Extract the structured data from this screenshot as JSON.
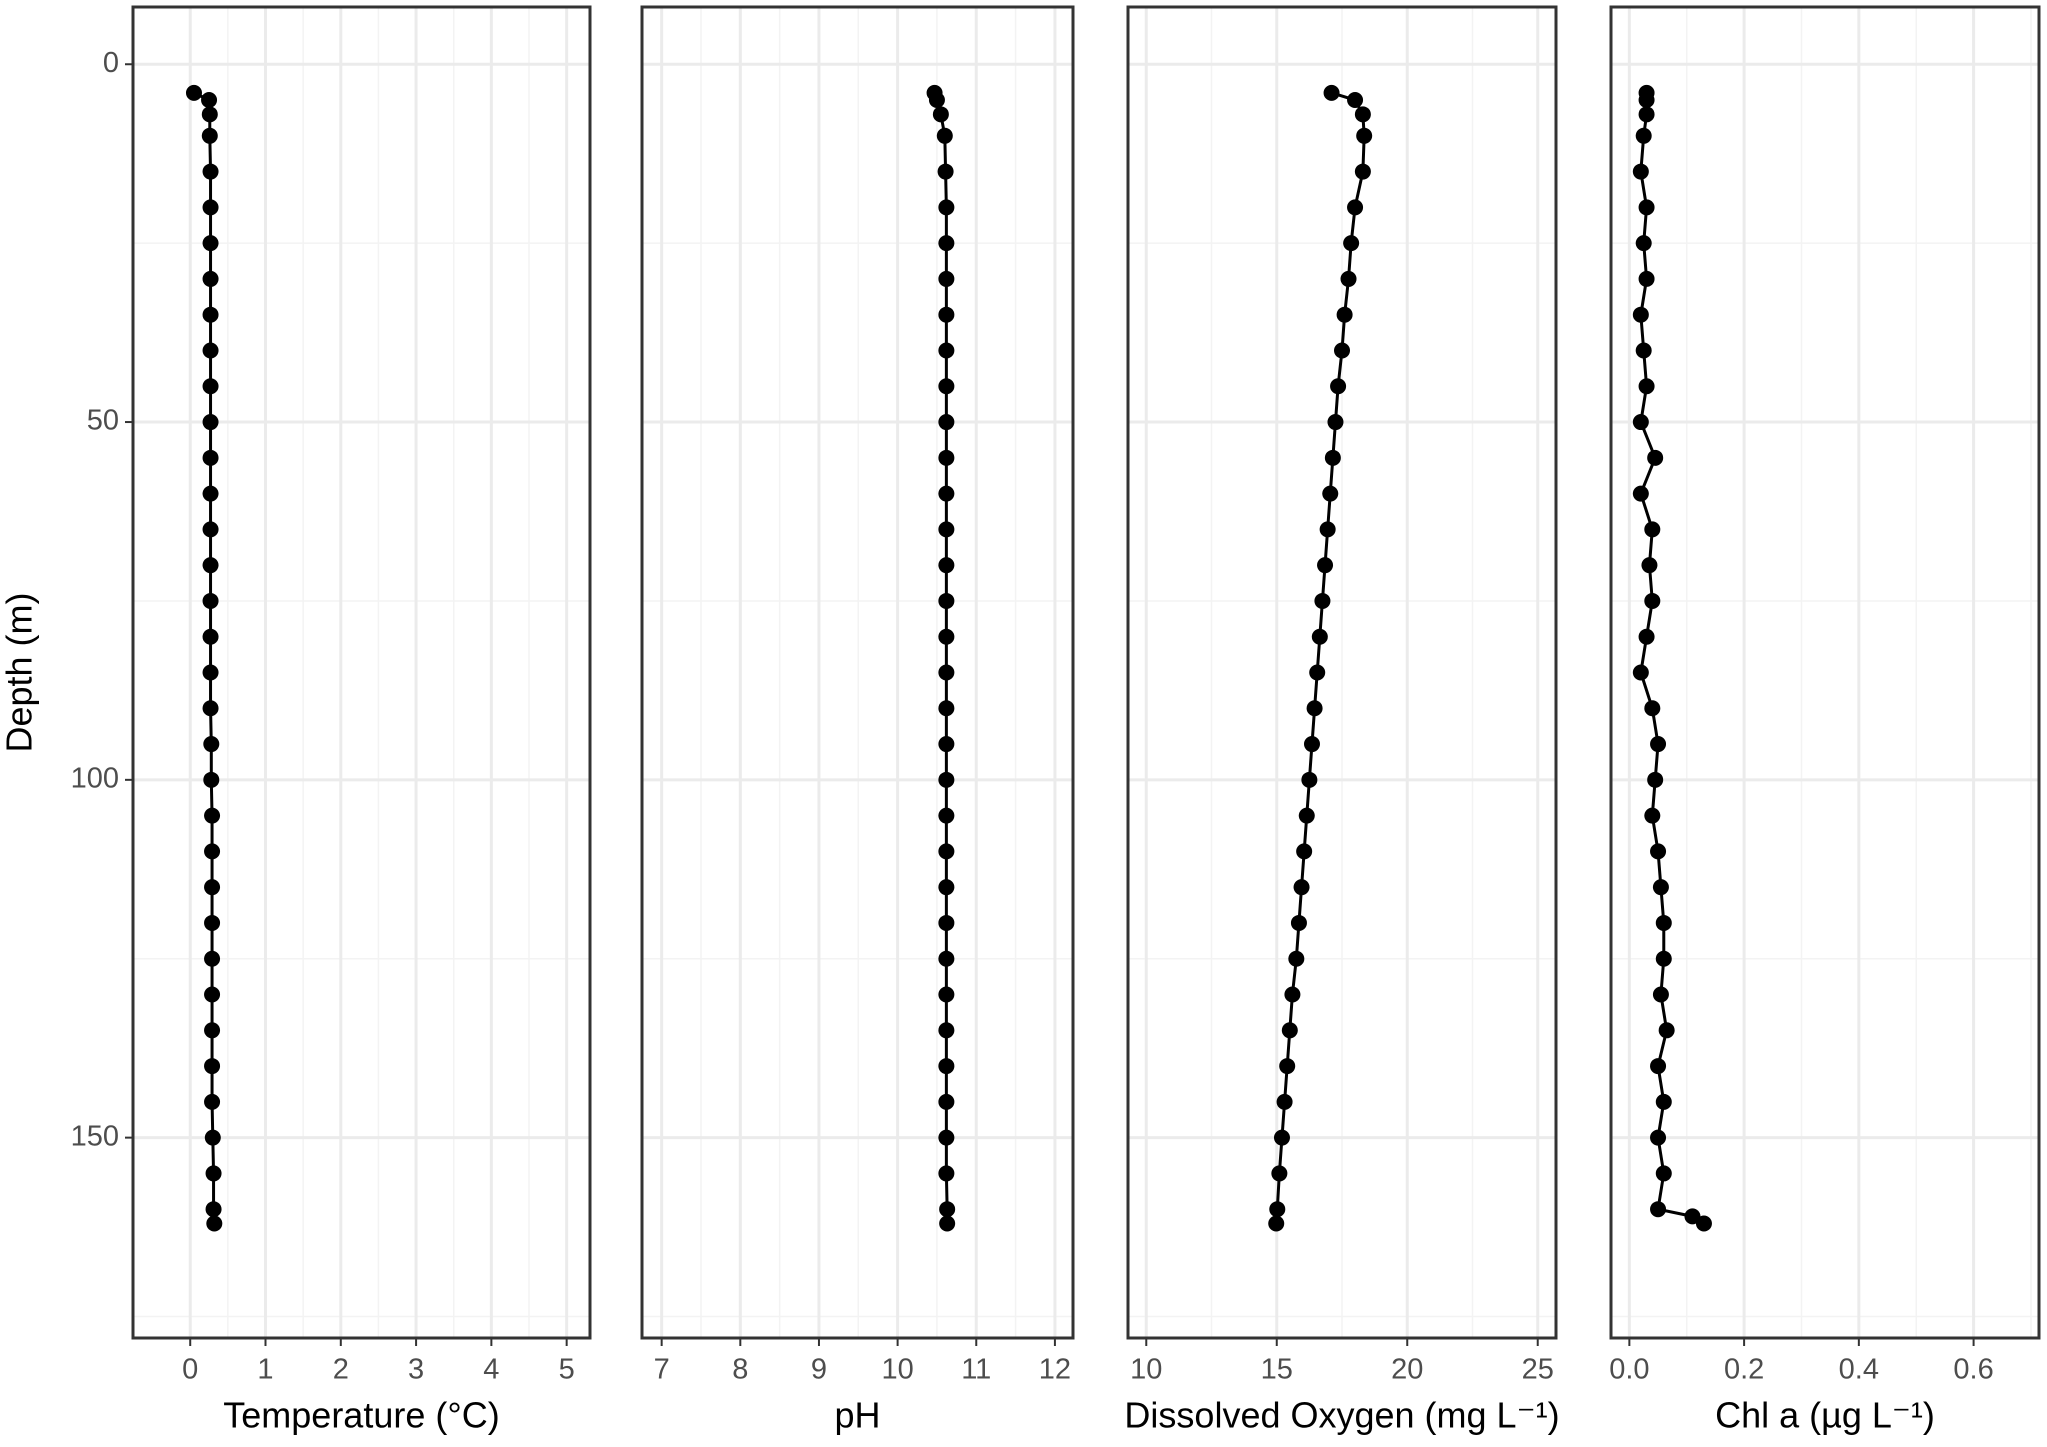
{
  "chart_data": [
    {
      "type": "line",
      "x_label": "Temperature (°C)",
      "y_label": "Depth (m)",
      "color": "#000000",
      "grid": true,
      "y_inverted": true,
      "xlim": [
        -0.76,
        5.31
      ],
      "xticks": [
        0,
        1,
        2,
        3,
        4,
        5
      ],
      "x_minor_ticks": [
        0.5,
        1.5,
        2.5,
        3.5,
        4.5
      ],
      "ylim": [
        -8,
        178
      ],
      "yticks": [
        0,
        50,
        100,
        150
      ],
      "y_minor_ticks": [
        25,
        75,
        125,
        175
      ],
      "y": [
        4,
        5,
        7,
        10,
        15,
        20,
        25,
        30,
        35,
        40,
        45,
        50,
        55,
        60,
        65,
        70,
        75,
        80,
        85,
        90,
        95,
        100,
        105,
        110,
        115,
        120,
        125,
        130,
        135,
        140,
        145,
        150,
        155,
        160,
        162
      ],
      "x": [
        0.05,
        0.25,
        0.26,
        0.26,
        0.27,
        0.27,
        0.27,
        0.27,
        0.27,
        0.27,
        0.27,
        0.27,
        0.27,
        0.27,
        0.27,
        0.27,
        0.27,
        0.27,
        0.27,
        0.27,
        0.28,
        0.28,
        0.29,
        0.29,
        0.29,
        0.29,
        0.29,
        0.29,
        0.29,
        0.29,
        0.29,
        0.3,
        0.31,
        0.31,
        0.32
      ]
    },
    {
      "type": "line",
      "x_label": "pH",
      "color": "#000000",
      "grid": true,
      "y_inverted": true,
      "xlim": [
        6.75,
        12.23
      ],
      "xticks": [
        7,
        8,
        9,
        10,
        11,
        12
      ],
      "x_minor_ticks": [
        7.5,
        8.5,
        9.5,
        10.5,
        11.5
      ],
      "ylim": [
        -8,
        178
      ],
      "yticks": [
        0,
        50,
        100,
        150
      ],
      "y_minor_ticks": [
        25,
        75,
        125,
        175
      ],
      "y": [
        4,
        5,
        7,
        10,
        15,
        20,
        25,
        30,
        35,
        40,
        45,
        50,
        55,
        60,
        65,
        70,
        75,
        80,
        85,
        90,
        95,
        100,
        105,
        110,
        115,
        120,
        125,
        130,
        135,
        140,
        145,
        150,
        155,
        160,
        162
      ],
      "x": [
        10.47,
        10.5,
        10.55,
        10.6,
        10.61,
        10.62,
        10.62,
        10.62,
        10.62,
        10.62,
        10.62,
        10.62,
        10.62,
        10.62,
        10.62,
        10.62,
        10.62,
        10.62,
        10.62,
        10.62,
        10.62,
        10.62,
        10.62,
        10.62,
        10.62,
        10.62,
        10.62,
        10.62,
        10.62,
        10.62,
        10.62,
        10.62,
        10.62,
        10.63,
        10.63
      ]
    },
    {
      "type": "line",
      "x_label": "Dissolved Oxygen (mg L⁻¹)",
      "color": "#000000",
      "grid": true,
      "y_inverted": true,
      "xlim": [
        9.3,
        25.7
      ],
      "xticks": [
        10,
        15,
        20,
        25
      ],
      "x_minor_ticks": [
        12.5,
        17.5,
        22.5
      ],
      "ylim": [
        -8,
        178
      ],
      "yticks": [
        0,
        50,
        100,
        150
      ],
      "y_minor_ticks": [
        25,
        75,
        125,
        175
      ],
      "y": [
        4,
        5,
        7,
        10,
        15,
        20,
        25,
        30,
        35,
        40,
        45,
        50,
        55,
        60,
        65,
        70,
        75,
        80,
        85,
        90,
        95,
        100,
        105,
        110,
        115,
        120,
        125,
        130,
        135,
        140,
        145,
        150,
        155,
        160,
        162
      ],
      "x": [
        17.1,
        18.0,
        18.3,
        18.35,
        18.3,
        18.0,
        17.85,
        17.75,
        17.6,
        17.5,
        17.35,
        17.25,
        17.15,
        17.05,
        16.95,
        16.85,
        16.75,
        16.65,
        16.55,
        16.45,
        16.35,
        16.25,
        16.15,
        16.05,
        15.95,
        15.85,
        15.75,
        15.6,
        15.5,
        15.4,
        15.3,
        15.2,
        15.1,
        15.02,
        14.98
      ]
    },
    {
      "type": "line",
      "x_label": "Chl a (µg L⁻¹)",
      "color": "#000000",
      "grid": true,
      "y_inverted": true,
      "xlim": [
        -0.032,
        0.714
      ],
      "xticks": [
        {
          "value": 0,
          "label": "0.0"
        },
        0.2,
        0.4,
        0.6
      ],
      "x_minor_ticks": [
        0.1,
        0.3,
        0.5,
        0.7
      ],
      "ylim": [
        -8,
        178
      ],
      "yticks": [
        0,
        50,
        100,
        150
      ],
      "y_minor_ticks": [
        25,
        75,
        125,
        175
      ],
      "y": [
        4,
        5,
        7,
        10,
        15,
        20,
        25,
        30,
        35,
        40,
        45,
        50,
        55,
        60,
        65,
        70,
        75,
        80,
        85,
        90,
        95,
        100,
        105,
        110,
        115,
        120,
        125,
        130,
        135,
        140,
        145,
        150,
        155,
        160,
        161,
        162
      ],
      "x": [
        0.03,
        0.03,
        0.03,
        0.025,
        0.02,
        0.03,
        0.025,
        0.03,
        0.02,
        0.025,
        0.03,
        0.02,
        0.045,
        0.02,
        0.04,
        0.035,
        0.04,
        0.03,
        0.02,
        0.04,
        0.05,
        0.045,
        0.04,
        0.05,
        0.055,
        0.06,
        0.06,
        0.055,
        0.065,
        0.05,
        0.06,
        0.05,
        0.06,
        0.05,
        0.11,
        0.13
      ]
    }
  ]
}
